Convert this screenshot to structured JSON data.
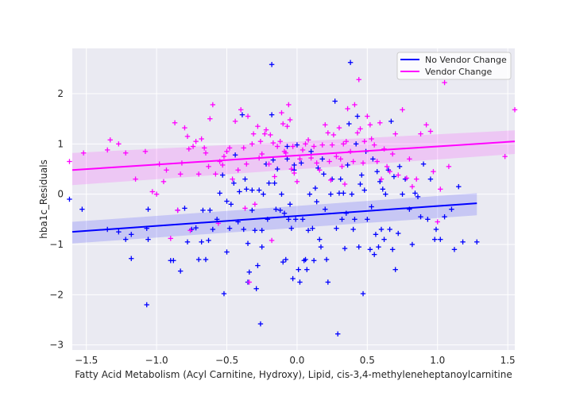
{
  "chart_data": {
    "type": "scatter",
    "title": "",
    "xlabel": "Fatty Acid Metabolism (Acyl Carnitine, Hydroxy), Lipid, cis-3,4-methyleneheptanoylcarnitine",
    "ylabel": "hba1c_Residuals",
    "xlim": [
      -1.6,
      1.55
    ],
    "ylim": [
      -3.1,
      2.9
    ],
    "xticks": [
      -1.5,
      -1.0,
      -0.5,
      0.0,
      0.5,
      1.0,
      1.5
    ],
    "xtick_labels": [
      "−1.5",
      "−1.0",
      "−0.5",
      "0.0",
      "0.5",
      "1.0",
      "1.5"
    ],
    "yticks": [
      -3,
      -2,
      -1,
      0,
      1,
      2
    ],
    "ytick_labels": [
      "−3",
      "−2",
      "−1",
      "0",
      "1",
      "2"
    ],
    "grid": true,
    "background": "#EAEAF2",
    "legend_position": "top-right",
    "marker": "+",
    "series": [
      {
        "name": "No Vendor Change",
        "color": "#0000ff",
        "fit": {
          "x": [
            -1.6,
            1.28
          ],
          "y": [
            -0.75,
            -0.18
          ],
          "ci_upper": [
            -0.55,
            0.02
          ],
          "ci_lower": [
            -0.98,
            -0.42
          ]
        },
        "points": [
          [
            -1.62,
            -0.1
          ],
          [
            -1.53,
            -0.3
          ],
          [
            -1.35,
            -0.7
          ],
          [
            -1.27,
            -0.75
          ],
          [
            -1.22,
            -0.9
          ],
          [
            -1.18,
            -0.8
          ],
          [
            -1.18,
            -1.28
          ],
          [
            -1.07,
            -2.2
          ],
          [
            -1.07,
            -0.68
          ],
          [
            -1.06,
            -0.9
          ],
          [
            -1.06,
            -0.3
          ],
          [
            -0.9,
            -1.32
          ],
          [
            -0.88,
            -1.32
          ],
          [
            -0.85,
            -0.32
          ],
          [
            -0.83,
            -1.53
          ],
          [
            -0.8,
            -0.28
          ],
          [
            -0.78,
            -0.95
          ],
          [
            -0.75,
            -0.7
          ],
          [
            -0.72,
            -0.67
          ],
          [
            -0.7,
            -1.3
          ],
          [
            -0.68,
            -0.95
          ],
          [
            -0.67,
            -0.32
          ],
          [
            -0.65,
            -1.3
          ],
          [
            -0.63,
            -0.92
          ],
          [
            -0.62,
            -0.32
          ],
          [
            -0.6,
            -0.7
          ],
          [
            -0.57,
            -0.5
          ],
          [
            -0.55,
            0.02
          ],
          [
            -0.53,
            0.38
          ],
          [
            -0.52,
            -1.98
          ],
          [
            -0.5,
            -1.15
          ],
          [
            -0.5,
            -0.14
          ],
          [
            -0.48,
            -0.68
          ],
          [
            -0.47,
            -0.2
          ],
          [
            -0.45,
            0.22
          ],
          [
            -0.44,
            0.78
          ],
          [
            -0.42,
            -0.55
          ],
          [
            -0.41,
            0.05
          ],
          [
            -0.39,
            1.58
          ],
          [
            -0.38,
            -0.7
          ],
          [
            -0.37,
            0.3
          ],
          [
            -0.36,
            0.1
          ],
          [
            -0.35,
            -1.75
          ],
          [
            -0.35,
            -0.98
          ],
          [
            -0.34,
            -1.55
          ],
          [
            -0.32,
            0.08
          ],
          [
            -0.32,
            -0.32
          ],
          [
            -0.3,
            -0.72
          ],
          [
            -0.29,
            -1.88
          ],
          [
            -0.28,
            -1.42
          ],
          [
            -0.27,
            0.08
          ],
          [
            -0.26,
            -2.58
          ],
          [
            -0.25,
            -0.72
          ],
          [
            -0.25,
            -1.05
          ],
          [
            -0.24,
            0.0
          ],
          [
            -0.22,
            0.6
          ],
          [
            -0.21,
            -0.5
          ],
          [
            -0.2,
            0.22
          ],
          [
            -0.18,
            2.58
          ],
          [
            -0.18,
            1.58
          ],
          [
            -0.17,
            0.68
          ],
          [
            -0.16,
            0.22
          ],
          [
            -0.15,
            -0.3
          ],
          [
            -0.14,
            0.5
          ],
          [
            -0.12,
            -0.32
          ],
          [
            -0.11,
            0.0
          ],
          [
            -0.1,
            -1.35
          ],
          [
            -0.09,
            -0.38
          ],
          [
            -0.08,
            -1.3
          ],
          [
            -0.07,
            0.7
          ],
          [
            -0.07,
            0.95
          ],
          [
            -0.06,
            -0.5
          ],
          [
            -0.05,
            -0.2
          ],
          [
            -0.04,
            -0.68
          ],
          [
            -0.03,
            -1.68
          ],
          [
            -0.02,
            0.58
          ],
          [
            -0.02,
            0.48
          ],
          [
            -0.01,
            -0.5
          ],
          [
            0.0,
            0.98
          ],
          [
            0.01,
            -1.5
          ],
          [
            0.02,
            -1.75
          ],
          [
            0.03,
            0.62
          ],
          [
            0.04,
            -0.5
          ],
          [
            0.05,
            -1.32
          ],
          [
            0.06,
            -1.3
          ],
          [
            0.07,
            -1.5
          ],
          [
            0.08,
            -0.72
          ],
          [
            0.09,
            0.0
          ],
          [
            0.1,
            0.85
          ],
          [
            0.11,
            -0.68
          ],
          [
            0.12,
            -1.32
          ],
          [
            0.13,
            0.12
          ],
          [
            0.14,
            -0.15
          ],
          [
            0.15,
            0.52
          ],
          [
            0.16,
            -0.9
          ],
          [
            0.17,
            -1.05
          ],
          [
            0.18,
            0.7
          ],
          [
            0.19,
            0.4
          ],
          [
            0.2,
            -0.3
          ],
          [
            0.21,
            -1.3
          ],
          [
            0.22,
            -1.75
          ],
          [
            0.24,
            0.0
          ],
          [
            0.25,
            0.3
          ],
          [
            0.27,
            1.85
          ],
          [
            0.28,
            -0.68
          ],
          [
            0.29,
            -2.78
          ],
          [
            0.3,
            0.02
          ],
          [
            0.31,
            0.3
          ],
          [
            0.32,
            -0.5
          ],
          [
            0.33,
            0.02
          ],
          [
            0.34,
            -1.08
          ],
          [
            0.35,
            -0.38
          ],
          [
            0.36,
            0.58
          ],
          [
            0.37,
            1.4
          ],
          [
            0.38,
            2.62
          ],
          [
            0.39,
            0.0
          ],
          [
            0.4,
            -0.7
          ],
          [
            0.41,
            -0.5
          ],
          [
            0.42,
            1.0
          ],
          [
            0.43,
            1.55
          ],
          [
            0.44,
            -1.05
          ],
          [
            0.45,
            0.2
          ],
          [
            0.46,
            0.38
          ],
          [
            0.47,
            -1.98
          ],
          [
            0.48,
            0.08
          ],
          [
            0.49,
            0.85
          ],
          [
            0.5,
            -0.5
          ],
          [
            0.52,
            -1.1
          ],
          [
            0.53,
            -0.25
          ],
          [
            0.54,
            0.7
          ],
          [
            0.55,
            -1.2
          ],
          [
            0.56,
            -0.8
          ],
          [
            0.57,
            0.45
          ],
          [
            0.58,
            -1.05
          ],
          [
            0.59,
            0.25
          ],
          [
            0.6,
            -0.7
          ],
          [
            0.61,
            0.1
          ],
          [
            0.62,
            -0.9
          ],
          [
            0.63,
            0.0
          ],
          [
            0.65,
            0.48
          ],
          [
            0.66,
            -0.7
          ],
          [
            0.67,
            1.45
          ],
          [
            0.68,
            -1.1
          ],
          [
            0.69,
            0.35
          ],
          [
            0.7,
            -1.5
          ],
          [
            0.72,
            -0.78
          ],
          [
            0.73,
            0.55
          ],
          [
            0.75,
            0.0
          ],
          [
            0.77,
            0.3
          ],
          [
            0.8,
            -0.3
          ],
          [
            0.82,
            -1.0
          ],
          [
            0.84,
            0.02
          ],
          [
            0.86,
            -0.05
          ],
          [
            0.88,
            -0.45
          ],
          [
            0.9,
            0.6
          ],
          [
            0.93,
            -0.5
          ],
          [
            0.95,
            0.3
          ],
          [
            0.98,
            -0.9
          ],
          [
            0.99,
            -0.7
          ],
          [
            1.02,
            -0.9
          ],
          [
            1.05,
            -0.45
          ],
          [
            1.1,
            -0.3
          ],
          [
            1.12,
            -1.1
          ],
          [
            1.15,
            0.15
          ],
          [
            1.18,
            -0.95
          ],
          [
            1.28,
            -0.95
          ]
        ]
      },
      {
        "name": "Vendor Change",
        "color": "#ff00ff",
        "fit": {
          "x": [
            -1.6,
            1.55
          ],
          "y": [
            0.48,
            1.05
          ],
          "ci_upper": [
            0.82,
            1.27
          ],
          "ci_lower": [
            0.18,
            0.8
          ]
        },
        "points": [
          [
            -1.62,
            0.65
          ],
          [
            -1.52,
            0.82
          ],
          [
            -1.35,
            0.88
          ],
          [
            -1.33,
            1.08
          ],
          [
            -1.27,
            1.0
          ],
          [
            -1.22,
            0.82
          ],
          [
            -1.15,
            0.3
          ],
          [
            -1.08,
            0.85
          ],
          [
            -1.03,
            0.05
          ],
          [
            -1.0,
            0.0
          ],
          [
            -0.98,
            0.6
          ],
          [
            -0.95,
            0.25
          ],
          [
            -0.93,
            0.48
          ],
          [
            -0.9,
            -0.88
          ],
          [
            -0.87,
            1.42
          ],
          [
            -0.85,
            -0.32
          ],
          [
            -0.83,
            0.4
          ],
          [
            -0.82,
            0.62
          ],
          [
            -0.8,
            1.32
          ],
          [
            -0.78,
            1.15
          ],
          [
            -0.77,
            0.9
          ],
          [
            -0.76,
            -0.72
          ],
          [
            -0.74,
            0.95
          ],
          [
            -0.72,
            1.05
          ],
          [
            -0.7,
            0.4
          ],
          [
            -0.68,
            1.1
          ],
          [
            -0.66,
            0.92
          ],
          [
            -0.65,
            0.82
          ],
          [
            -0.63,
            0.55
          ],
          [
            -0.62,
            1.5
          ],
          [
            -0.6,
            1.78
          ],
          [
            -0.58,
            0.4
          ],
          [
            -0.56,
            -0.58
          ],
          [
            -0.55,
            0.65
          ],
          [
            -0.53,
            0.58
          ],
          [
            -0.52,
            0.75
          ],
          [
            -0.5,
            0.85
          ],
          [
            -0.48,
            0.92
          ],
          [
            -0.46,
            0.3
          ],
          [
            -0.44,
            1.45
          ],
          [
            -0.42,
            0.48
          ],
          [
            -0.4,
            1.68
          ],
          [
            -0.38,
            0.92
          ],
          [
            -0.37,
            -0.28
          ],
          [
            -0.36,
            0.6
          ],
          [
            -0.35,
            1.55
          ],
          [
            -0.34,
            -1.75
          ],
          [
            -0.32,
            1.0
          ],
          [
            -0.31,
            1.2
          ],
          [
            -0.3,
            -0.2
          ],
          [
            -0.28,
            1.35
          ],
          [
            -0.27,
            0.72
          ],
          [
            -0.26,
            1.05
          ],
          [
            -0.25,
            0.8
          ],
          [
            -0.23,
            1.2
          ],
          [
            -0.22,
            1.28
          ],
          [
            -0.2,
            0.6
          ],
          [
            -0.19,
            1.18
          ],
          [
            -0.18,
            -0.92
          ],
          [
            -0.17,
            1.02
          ],
          [
            -0.16,
            0.35
          ],
          [
            -0.14,
            0.95
          ],
          [
            -0.12,
            1.05
          ],
          [
            -0.11,
            1.62
          ],
          [
            -0.1,
            1.4
          ],
          [
            -0.09,
            0.85
          ],
          [
            -0.08,
            0.82
          ],
          [
            -0.07,
            1.35
          ],
          [
            -0.06,
            1.78
          ],
          [
            -0.05,
            1.48
          ],
          [
            -0.04,
            0.5
          ],
          [
            -0.03,
            0.95
          ],
          [
            -0.02,
            0.42
          ],
          [
            0.0,
            0.25
          ],
          [
            0.02,
            0.7
          ],
          [
            0.04,
            0.88
          ],
          [
            0.06,
            1.0
          ],
          [
            0.08,
            1.08
          ],
          [
            0.1,
            0.72
          ],
          [
            0.12,
            0.95
          ],
          [
            0.14,
            0.62
          ],
          [
            0.16,
            0.48
          ],
          [
            0.18,
            0.98
          ],
          [
            0.2,
            1.38
          ],
          [
            0.22,
            1.22
          ],
          [
            0.23,
            0.65
          ],
          [
            0.24,
            0.28
          ],
          [
            0.25,
            0.98
          ],
          [
            0.26,
            1.18
          ],
          [
            0.28,
            0.75
          ],
          [
            0.3,
            1.32
          ],
          [
            0.31,
            0.7
          ],
          [
            0.32,
            0.55
          ],
          [
            0.33,
            1.0
          ],
          [
            0.34,
            0.2
          ],
          [
            0.35,
            1.05
          ],
          [
            0.36,
            1.7
          ],
          [
            0.38,
            0.85
          ],
          [
            0.4,
            0.65
          ],
          [
            0.41,
            1.78
          ],
          [
            0.43,
            1.22
          ],
          [
            0.44,
            2.28
          ],
          [
            0.45,
            1.3
          ],
          [
            0.47,
            0.62
          ],
          [
            0.48,
            1.05
          ],
          [
            0.5,
            1.55
          ],
          [
            0.52,
            1.38
          ],
          [
            0.53,
            1.1
          ],
          [
            0.55,
            0.98
          ],
          [
            0.57,
            0.65
          ],
          [
            0.59,
            1.42
          ],
          [
            0.6,
            0.3
          ],
          [
            0.62,
            0.9
          ],
          [
            0.64,
            0.55
          ],
          [
            0.66,
            0.45
          ],
          [
            0.68,
            0.8
          ],
          [
            0.7,
            1.2
          ],
          [
            0.72,
            0.38
          ],
          [
            0.75,
            1.68
          ],
          [
            0.78,
            0.32
          ],
          [
            0.8,
            0.7
          ],
          [
            0.82,
            0.15
          ],
          [
            0.85,
            0.3
          ],
          [
            0.88,
            1.2
          ],
          [
            0.92,
            1.38
          ],
          [
            0.95,
            1.25
          ],
          [
            0.97,
            0.45
          ],
          [
            1.0,
            -0.55
          ],
          [
            1.02,
            0.1
          ],
          [
            1.05,
            2.22
          ],
          [
            1.08,
            0.55
          ],
          [
            1.48,
            0.75
          ],
          [
            1.55,
            1.68
          ]
        ]
      }
    ]
  }
}
